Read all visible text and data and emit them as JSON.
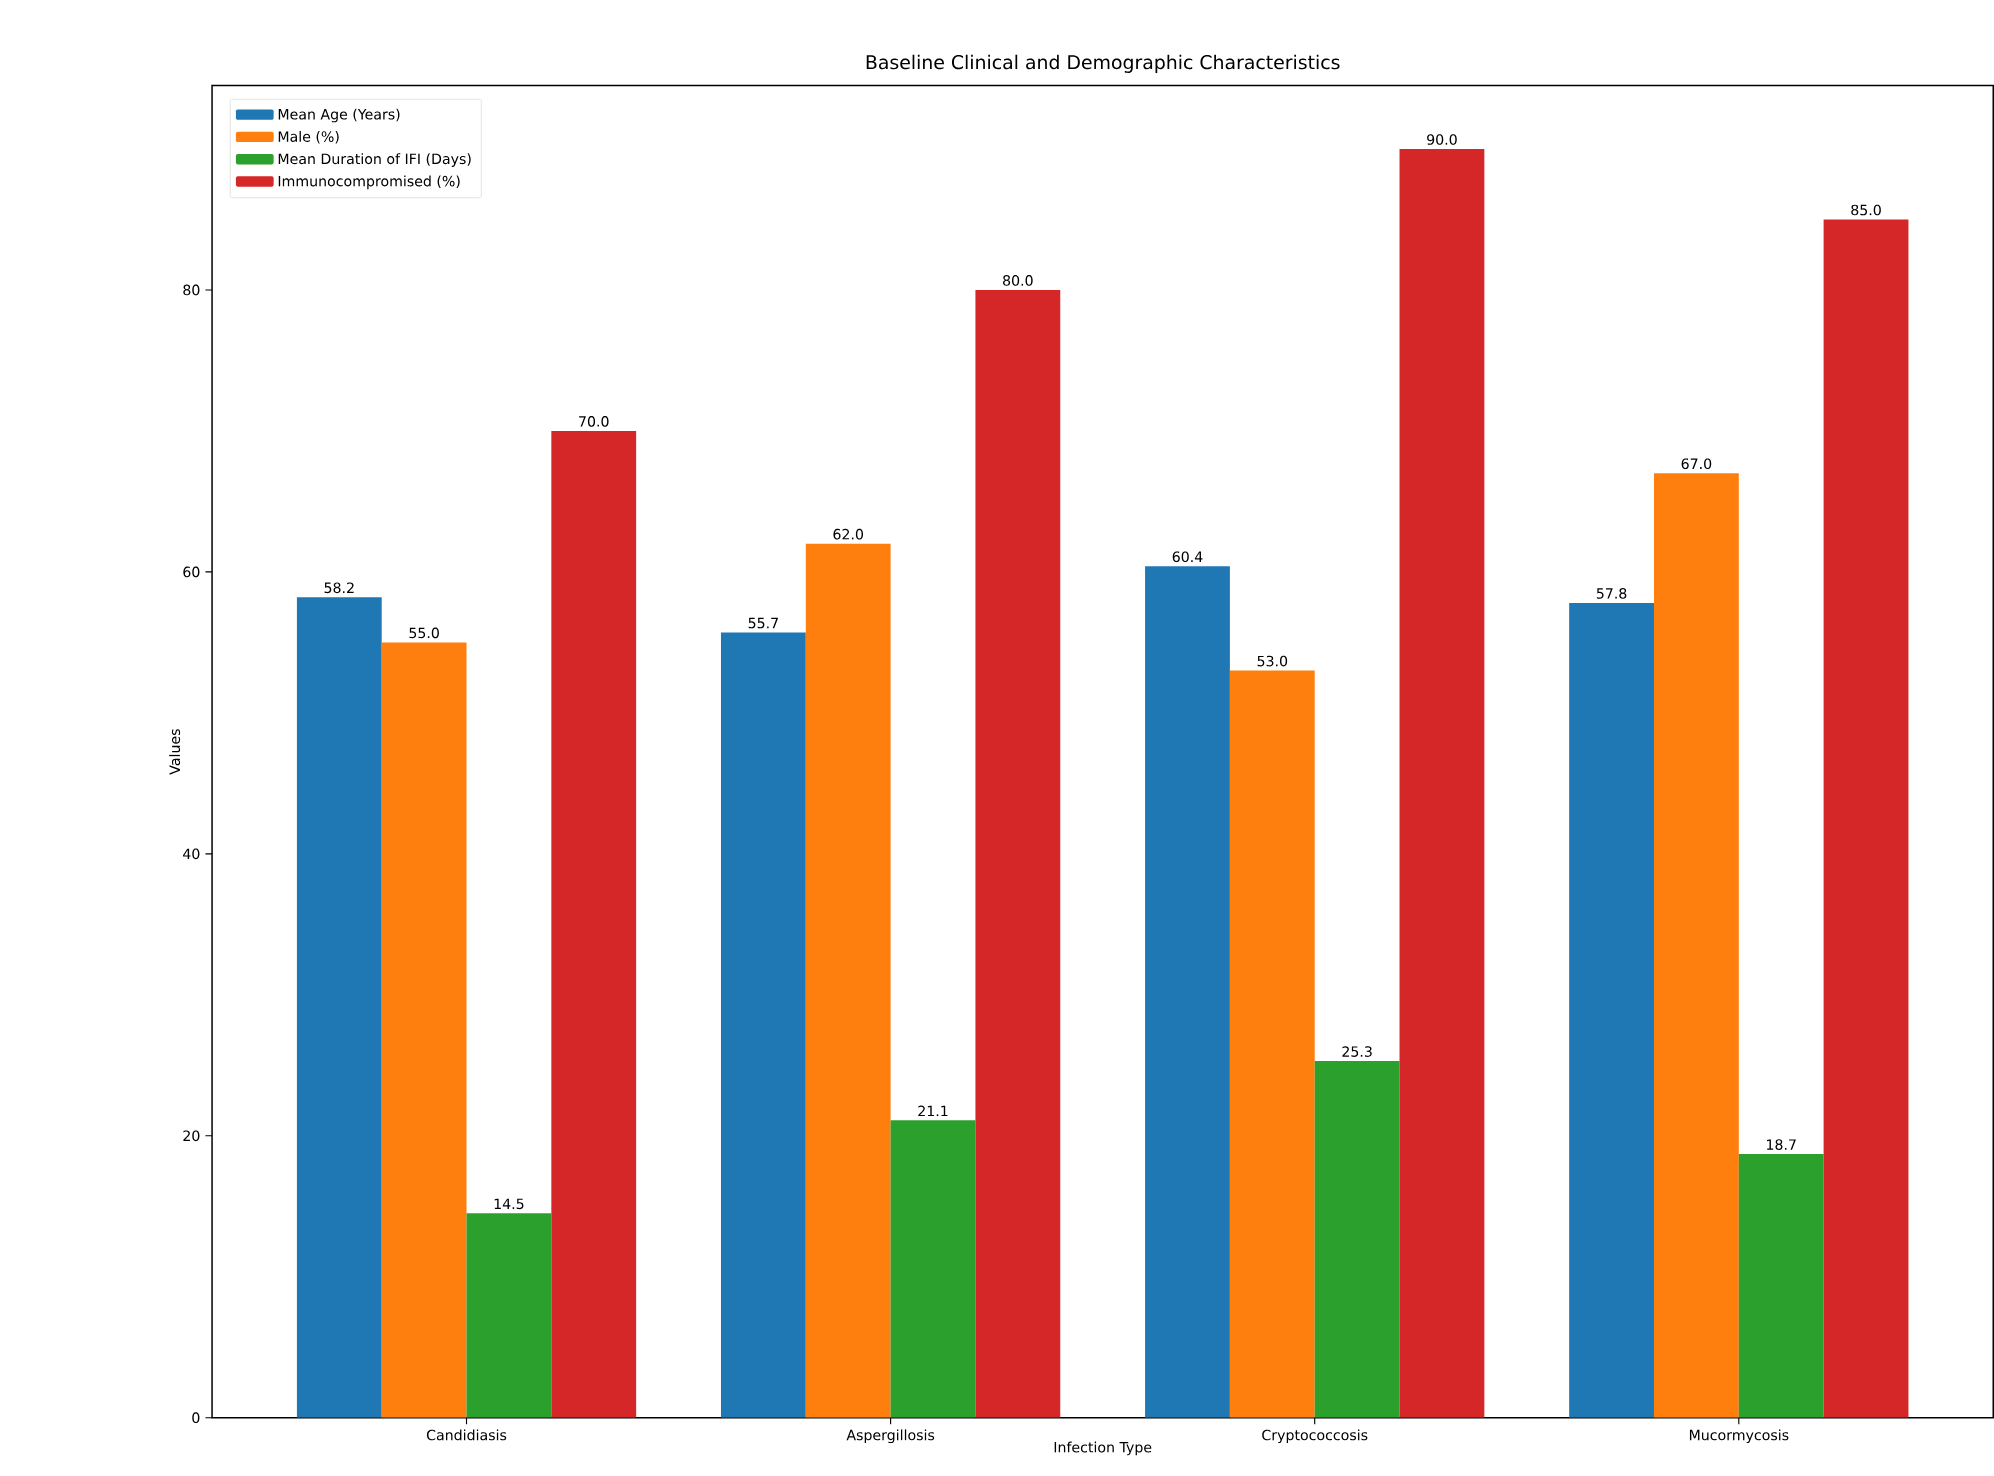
{
  "chart_data": {
    "type": "bar",
    "title": "Baseline Clinical and Demographic Characteristics",
    "xlabel": "Infection Type",
    "ylabel": "Values",
    "categories": [
      "Candidiasis",
      "Aspergillosis",
      "Cryptococcosis",
      "Mucormycosis"
    ],
    "series": [
      {
        "name": "Mean Age (Years)",
        "color": "#1f77b4",
        "values": [
          58.2,
          55.7,
          60.4,
          57.8
        ],
        "value_labels": [
          "58.2",
          "55.7",
          "60.4",
          "57.8"
        ]
      },
      {
        "name": "Male (%)",
        "color": "#ff7f0e",
        "values": [
          55.0,
          62.0,
          53.0,
          67.0
        ],
        "value_labels": [
          "55.0",
          "62.0",
          "53.0",
          "67.0"
        ]
      },
      {
        "name": "Mean Duration of IFI (Days)",
        "color": "#2ca02c",
        "values": [
          14.5,
          21.1,
          25.3,
          18.7
        ],
        "value_labels": [
          "14.5",
          "21.1",
          "25.3",
          "18.7"
        ]
      },
      {
        "name": "Immunocompromised (%)",
        "color": "#d62728",
        "values": [
          70.0,
          80.0,
          90.0,
          85.0
        ],
        "value_labels": [
          "70.0",
          "80.0",
          "90.0",
          "85.0"
        ]
      }
    ],
    "ylim": [
      0,
      94.5
    ],
    "yticks": [
      0,
      20,
      40,
      60,
      80
    ],
    "legend": "top left"
  }
}
